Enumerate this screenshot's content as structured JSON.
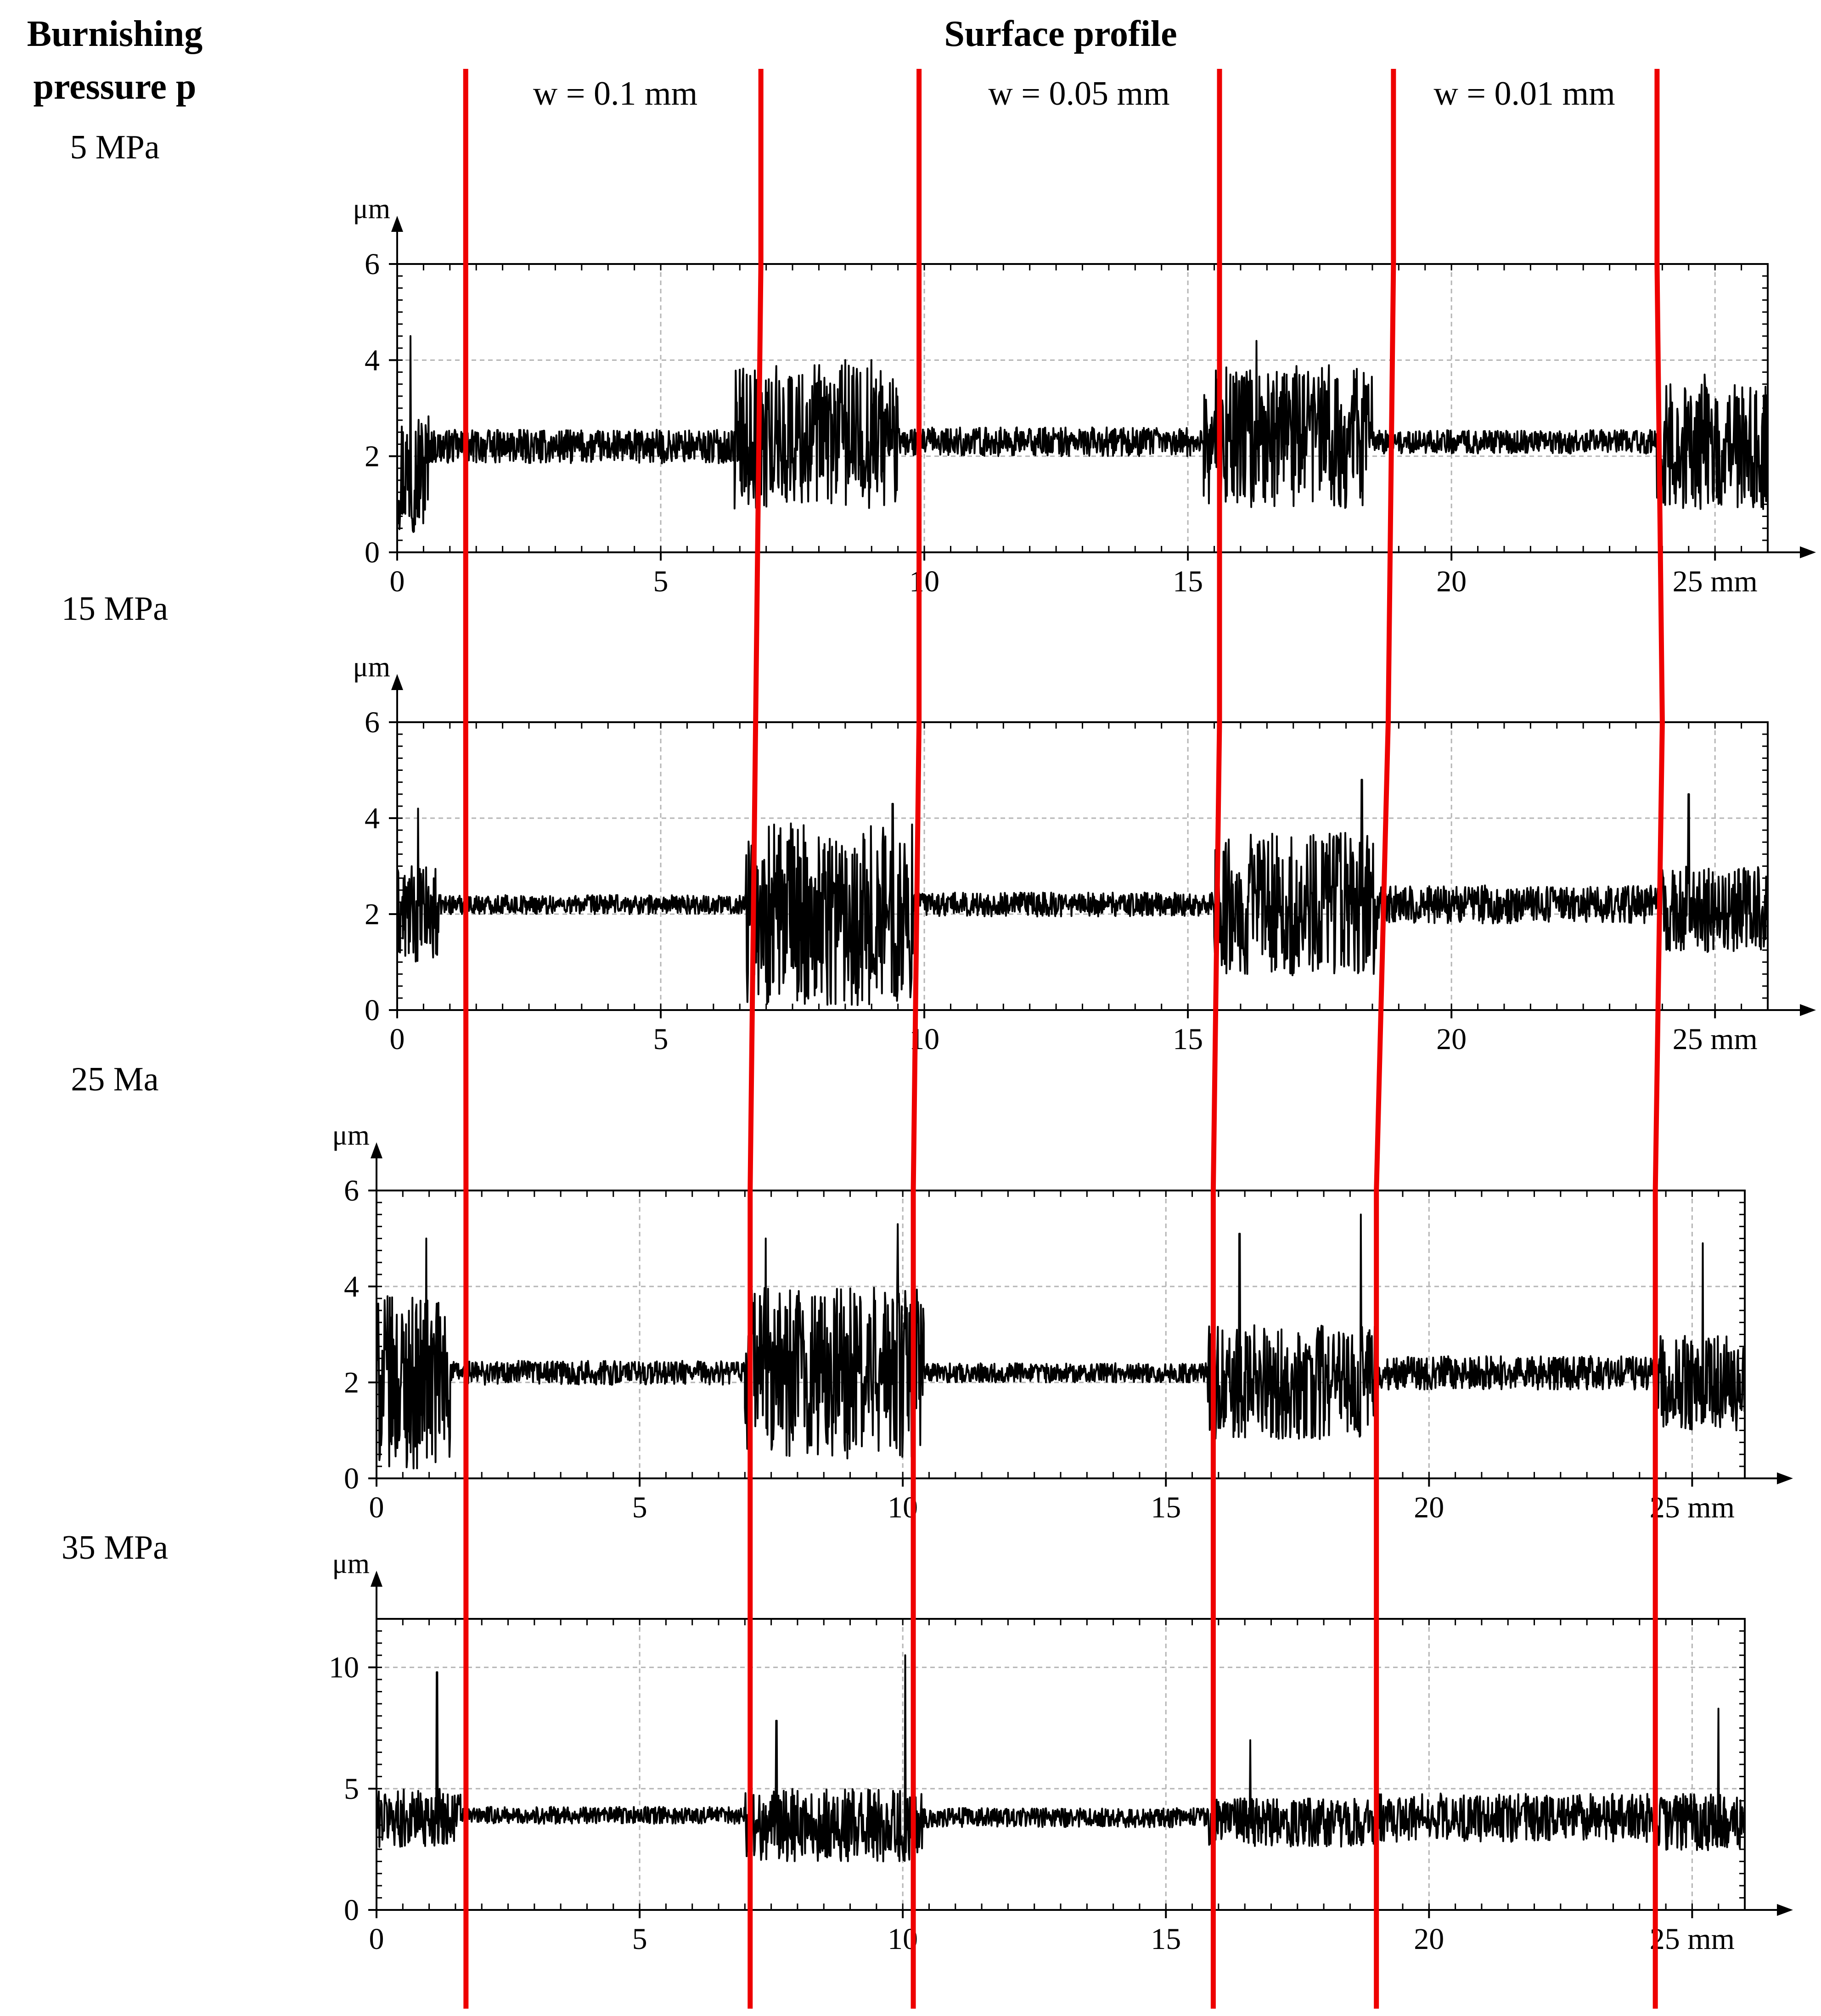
{
  "headers": {
    "left_line1": "Burnishing",
    "left_line2": "pressure p",
    "center": "Surface profile"
  },
  "zones": [
    "w = 0.1 mm",
    "w = 0.05 mm",
    "w = 0.01 mm"
  ],
  "colors": {
    "profile": "#000000",
    "zone_divider": "#ee0000",
    "grid": "#b5b5b5"
  },
  "chart_data": [
    {
      "type": "line",
      "pressure_label": "5 MPa",
      "y_unit": "μm",
      "x_unit": "mm",
      "xlim": [
        0,
        26
      ],
      "ylim": [
        0,
        6
      ],
      "x_ticks": [
        0,
        5,
        10,
        15,
        20,
        25
      ],
      "y_ticks": [
        0,
        2,
        4,
        6
      ],
      "x_tick_labels": [
        "0",
        "5",
        "10",
        "15",
        "20",
        "25 mm"
      ],
      "grid": true,
      "zone_boundaries_mm": [
        1.3,
        6.9,
        9.9,
        15.6,
        18.9,
        23.9
      ],
      "segments": [
        {
          "x0": 0,
          "x1": 0.6,
          "base": 1.7,
          "amp": 1.3,
          "peaks": [
            [
              0.25,
              4.5
            ]
          ]
        },
        {
          "x0": 0.6,
          "x1": 6.4,
          "base": 2.2,
          "amp": 0.35
        },
        {
          "x0": 6.4,
          "x1": 9.5,
          "base": 2.4,
          "amp": 1.5,
          "peaks": [
            [
              6.5,
              3.8
            ],
            [
              8.5,
              4.0
            ],
            [
              9.0,
              4.0
            ]
          ]
        },
        {
          "x0": 9.5,
          "x1": 15.3,
          "base": 2.3,
          "amp": 0.3
        },
        {
          "x0": 15.3,
          "x1": 18.5,
          "base": 2.4,
          "amp": 1.5,
          "peaks": [
            [
              16.3,
              4.4
            ]
          ]
        },
        {
          "x0": 18.5,
          "x1": 23.9,
          "base": 2.3,
          "amp": 0.25
        },
        {
          "x0": 23.9,
          "x1": 26,
          "base": 2.2,
          "amp": 1.3,
          "peaks": [
            [
              24.8,
              3.7
            ]
          ]
        }
      ]
    },
    {
      "type": "line",
      "pressure_label": "15 MPa",
      "y_unit": "μm",
      "x_unit": "mm",
      "xlim": [
        0,
        26
      ],
      "ylim": [
        0,
        6
      ],
      "x_ticks": [
        0,
        5,
        10,
        15,
        20,
        25
      ],
      "y_ticks": [
        0,
        2,
        4,
        6
      ],
      "x_tick_labels": [
        "0",
        "5",
        "10",
        "15",
        "20",
        "25 mm"
      ],
      "grid": true,
      "zone_boundaries_mm": [
        1.3,
        6.8,
        9.9,
        15.6,
        18.8,
        24.0
      ],
      "segments": [
        {
          "x0": 0,
          "x1": 0.8,
          "base": 2.0,
          "amp": 1.0,
          "peaks": [
            [
              0.4,
              4.2
            ]
          ]
        },
        {
          "x0": 0.8,
          "x1": 6.6,
          "base": 2.2,
          "amp": 0.2
        },
        {
          "x0": 6.6,
          "x1": 9.8,
          "base": 2.0,
          "amp": 1.9,
          "peaks": [
            [
              9.4,
              4.3
            ]
          ]
        },
        {
          "x0": 9.8,
          "x1": 15.5,
          "base": 2.2,
          "amp": 0.25
        },
        {
          "x0": 15.5,
          "x1": 18.6,
          "base": 2.2,
          "amp": 1.5,
          "peaks": [
            [
              18.3,
              4.8
            ]
          ]
        },
        {
          "x0": 18.6,
          "x1": 24.0,
          "base": 2.2,
          "amp": 0.4
        },
        {
          "x0": 24.0,
          "x1": 26,
          "base": 2.1,
          "amp": 0.9,
          "peaks": [
            [
              24.5,
              4.5
            ]
          ]
        }
      ]
    },
    {
      "type": "line",
      "pressure_label": "25 Ma",
      "y_unit": "μm",
      "x_unit": "mm",
      "xlim": [
        0,
        26
      ],
      "ylim": [
        0,
        6
      ],
      "x_ticks": [
        0,
        5,
        10,
        15,
        20,
        25
      ],
      "y_ticks": [
        0,
        2,
        4,
        6
      ],
      "x_tick_labels": [
        "0",
        "5",
        "10",
        "15",
        "20",
        "25 mm"
      ],
      "grid": true,
      "zone_boundaries_mm": [
        1.7,
        7.1,
        10.2,
        15.9,
        19.0,
        24.3
      ],
      "segments": [
        {
          "x0": 0,
          "x1": 1.4,
          "base": 2.0,
          "amp": 1.8,
          "peaks": [
            [
              0.95,
              5.0
            ]
          ]
        },
        {
          "x0": 1.4,
          "x1": 7.0,
          "base": 2.2,
          "amp": 0.25
        },
        {
          "x0": 7.0,
          "x1": 10.4,
          "base": 2.2,
          "amp": 1.8,
          "peaks": [
            [
              7.4,
              5.0
            ],
            [
              9.9,
              5.3
            ]
          ]
        },
        {
          "x0": 10.4,
          "x1": 15.8,
          "base": 2.2,
          "amp": 0.2
        },
        {
          "x0": 15.8,
          "x1": 19.0,
          "base": 2.0,
          "amp": 1.2,
          "peaks": [
            [
              16.4,
              5.1
            ],
            [
              18.7,
              5.5
            ]
          ]
        },
        {
          "x0": 19.0,
          "x1": 24.3,
          "base": 2.2,
          "amp": 0.35
        },
        {
          "x0": 24.3,
          "x1": 26,
          "base": 2.0,
          "amp": 1.0,
          "peaks": [
            [
              25.2,
              4.9
            ]
          ]
        }
      ]
    },
    {
      "type": "line",
      "pressure_label": "35 MPa",
      "y_unit": "μm",
      "x_unit": "mm",
      "xlim": [
        0,
        26
      ],
      "ylim": [
        0,
        12
      ],
      "x_ticks": [
        0,
        5,
        10,
        15,
        20,
        25
      ],
      "y_ticks": [
        0,
        5,
        10
      ],
      "x_tick_labels": [
        "0",
        "5",
        "10",
        "15",
        "20",
        "25 mm"
      ],
      "grid": true,
      "zone_boundaries_mm": [
        1.7,
        7.1,
        10.2,
        15.9,
        19.0,
        24.3
      ],
      "segments": [
        {
          "x0": 0,
          "x1": 1.6,
          "base": 3.8,
          "amp": 1.2,
          "peaks": [
            [
              1.15,
              9.8
            ]
          ]
        },
        {
          "x0": 1.6,
          "x1": 7.0,
          "base": 3.9,
          "amp": 0.35
        },
        {
          "x0": 7.0,
          "x1": 10.4,
          "base": 3.5,
          "amp": 1.5,
          "peaks": [
            [
              7.6,
              7.8
            ],
            [
              10.05,
              10.5
            ]
          ]
        },
        {
          "x0": 10.4,
          "x1": 15.8,
          "base": 3.8,
          "amp": 0.4
        },
        {
          "x0": 15.8,
          "x1": 19.0,
          "base": 3.6,
          "amp": 1.0,
          "peaks": [
            [
              16.6,
              7.0
            ],
            [
              19.0,
              11.0
            ]
          ]
        },
        {
          "x0": 19.0,
          "x1": 24.3,
          "base": 3.8,
          "amp": 1.0
        },
        {
          "x0": 24.3,
          "x1": 26,
          "base": 3.6,
          "amp": 1.2,
          "peaks": [
            [
              25.5,
              8.3
            ]
          ]
        }
      ]
    }
  ]
}
